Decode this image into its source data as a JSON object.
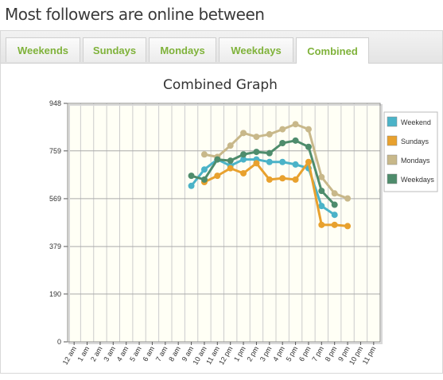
{
  "page": {
    "title": "Most followers are online between"
  },
  "tabs": [
    {
      "label": "Weekends",
      "active": false
    },
    {
      "label": "Sundays",
      "active": false
    },
    {
      "label": "Mondays",
      "active": false
    },
    {
      "label": "Weekdays",
      "active": false
    },
    {
      "label": "Combined",
      "active": true
    }
  ],
  "colors": {
    "tab_text": "#7fb23a",
    "plot_bg": "#fffff5",
    "grid": "#cccccc"
  },
  "chart_data": {
    "type": "line",
    "title": "Combined Graph",
    "xlabel": "",
    "ylabel": "",
    "categories": [
      "12 am",
      "1 am",
      "2 am",
      "3 am",
      "4 am",
      "5 am",
      "6 am",
      "7 am",
      "8 am",
      "9 am",
      "10 am",
      "11 am",
      "12 pm",
      "1 pm",
      "2 pm",
      "3 pm",
      "4 pm",
      "5 pm",
      "6 pm",
      "7 pm",
      "8 pm",
      "9 pm",
      "10 pm",
      "11 pm"
    ],
    "y_ticks": [
      0,
      190,
      379,
      569,
      759,
      948
    ],
    "ylim": [
      0,
      948
    ],
    "grid": true,
    "legend_position": "right",
    "series": [
      {
        "name": "Weekend",
        "color": "#4bb3c8",
        "values": [
          null,
          null,
          null,
          null,
          null,
          null,
          null,
          null,
          null,
          620,
          685,
          725,
          700,
          725,
          725,
          715,
          715,
          705,
          690,
          540,
          505,
          null,
          null,
          null
        ]
      },
      {
        "name": "Sundays",
        "color": "#e8a12e",
        "values": [
          null,
          null,
          null,
          null,
          null,
          null,
          null,
          null,
          null,
          null,
          635,
          660,
          690,
          670,
          710,
          645,
          650,
          645,
          715,
          465,
          465,
          460,
          null,
          null
        ]
      },
      {
        "name": "Mondays",
        "color": "#c8b88a",
        "values": [
          null,
          null,
          null,
          null,
          null,
          null,
          null,
          null,
          null,
          null,
          745,
          735,
          780,
          830,
          815,
          825,
          845,
          865,
          845,
          655,
          590,
          570,
          null,
          null
        ]
      },
      {
        "name": "Weekdays",
        "color": "#4e8c6c",
        "values": [
          null,
          null,
          null,
          null,
          null,
          null,
          null,
          null,
          null,
          660,
          645,
          725,
          720,
          745,
          755,
          750,
          790,
          800,
          775,
          600,
          545,
          null,
          null,
          null
        ]
      }
    ]
  }
}
